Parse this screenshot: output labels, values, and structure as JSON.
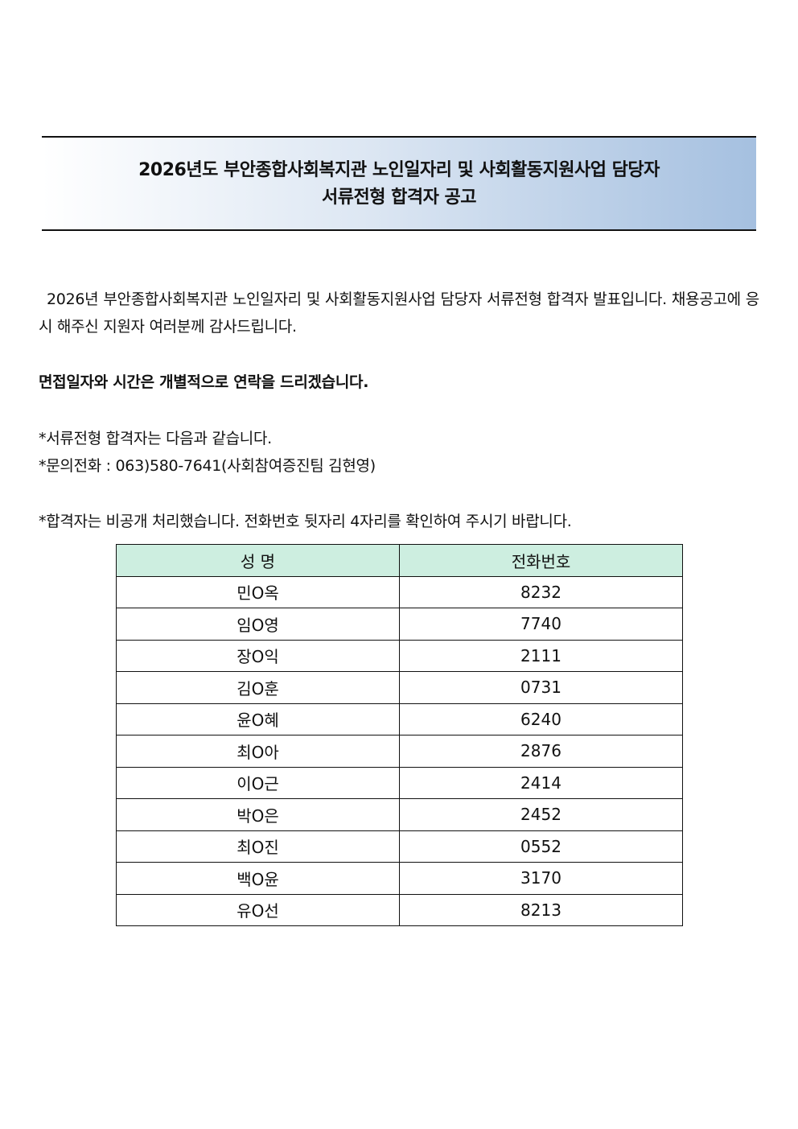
{
  "title": {
    "line1": "2026년도 부안종합사회복지관 노인일자리 및 사회활동지원사업 담당자",
    "line2": "서류전형 합격자 공고"
  },
  "body": {
    "intro": "2026년 부안종합사회복지관 노인일자리 및 사회활동지원사업 담당자 서류전형 합격자 발표입니다. 채용공고에 응시 해주신 지원자 여러분께 감사드립니다.",
    "interview_notice": "면접일자와 시간은 개별적으로 연락을 드리겠습니다.",
    "note1": "*서류전형 합격자는 다음과 같습니다.",
    "note2": "*문의전화 : 063)580-7641(사회참여증진팀 김현영)",
    "note3": "*합격자는 비공개 처리했습니다. 전화번호 뒷자리 4자리를 확인하여 주시기 바랍니다."
  },
  "table": {
    "headers": [
      "성 명",
      "전화번호"
    ],
    "rows": [
      [
        "민O옥",
        "8232"
      ],
      [
        "임O영",
        "7740"
      ],
      [
        "장O익",
        "2111"
      ],
      [
        "김O훈",
        "0731"
      ],
      [
        "윤O혜",
        "6240"
      ],
      [
        "최O아",
        "2876"
      ],
      [
        "이O근",
        "2414"
      ],
      [
        "박O은",
        "2452"
      ],
      [
        "최O진",
        "0552"
      ],
      [
        "백O윤",
        "3170"
      ],
      [
        "유O선",
        "8213"
      ]
    ]
  },
  "colors": {
    "header_bg": "#cdeee0",
    "title_gradient_end": "#a5c0e0"
  }
}
